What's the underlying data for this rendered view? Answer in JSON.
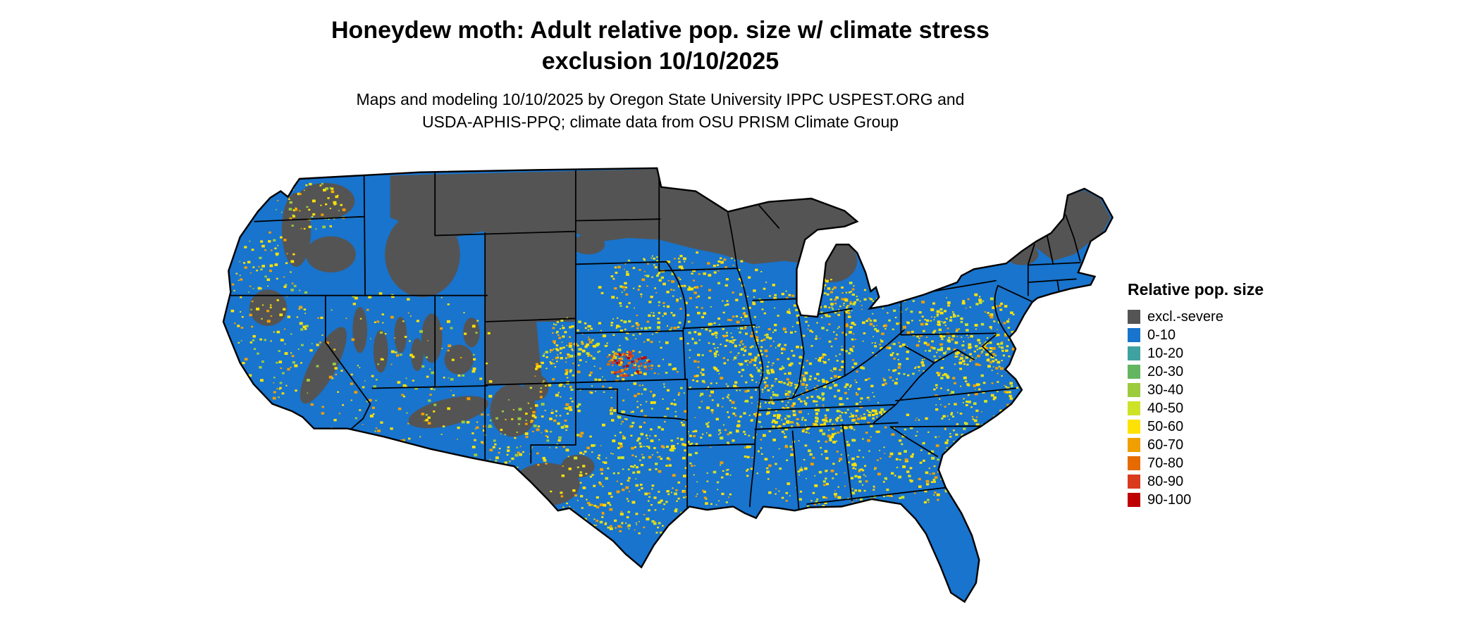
{
  "header": {
    "title_line1": "Honeydew moth: Adult relative pop. size w/ climate stress",
    "title_line2": "exclusion 10/10/2025",
    "subtitle_line1": "Maps and modeling 10/10/2025 by Oregon State University IPPC USPEST.ORG and",
    "subtitle_line2": "USDA-APHIS-PPQ; climate data from OSU PRISM Climate Group"
  },
  "map": {
    "region": "Continental United States",
    "base_color": "#1874CD",
    "excluded_color": "#545454",
    "border_color": "#000000",
    "background_color": "#FFFFFF"
  },
  "legend": {
    "title": "Relative pop. size",
    "items": [
      {
        "label": "excl.-severe",
        "color": "#545454"
      },
      {
        "label": "0-10",
        "color": "#1874CD"
      },
      {
        "label": "10-20",
        "color": "#3FA2A0"
      },
      {
        "label": "20-30",
        "color": "#63B560"
      },
      {
        "label": "30-40",
        "color": "#9CCB3E"
      },
      {
        "label": "40-50",
        "color": "#CEE228"
      },
      {
        "label": "50-60",
        "color": "#FFE205"
      },
      {
        "label": "60-70",
        "color": "#EF9F00"
      },
      {
        "label": "70-80",
        "color": "#E56B00"
      },
      {
        "label": "80-90",
        "color": "#D93B1E"
      },
      {
        "label": "90-100",
        "color": "#BE0000"
      }
    ]
  }
}
